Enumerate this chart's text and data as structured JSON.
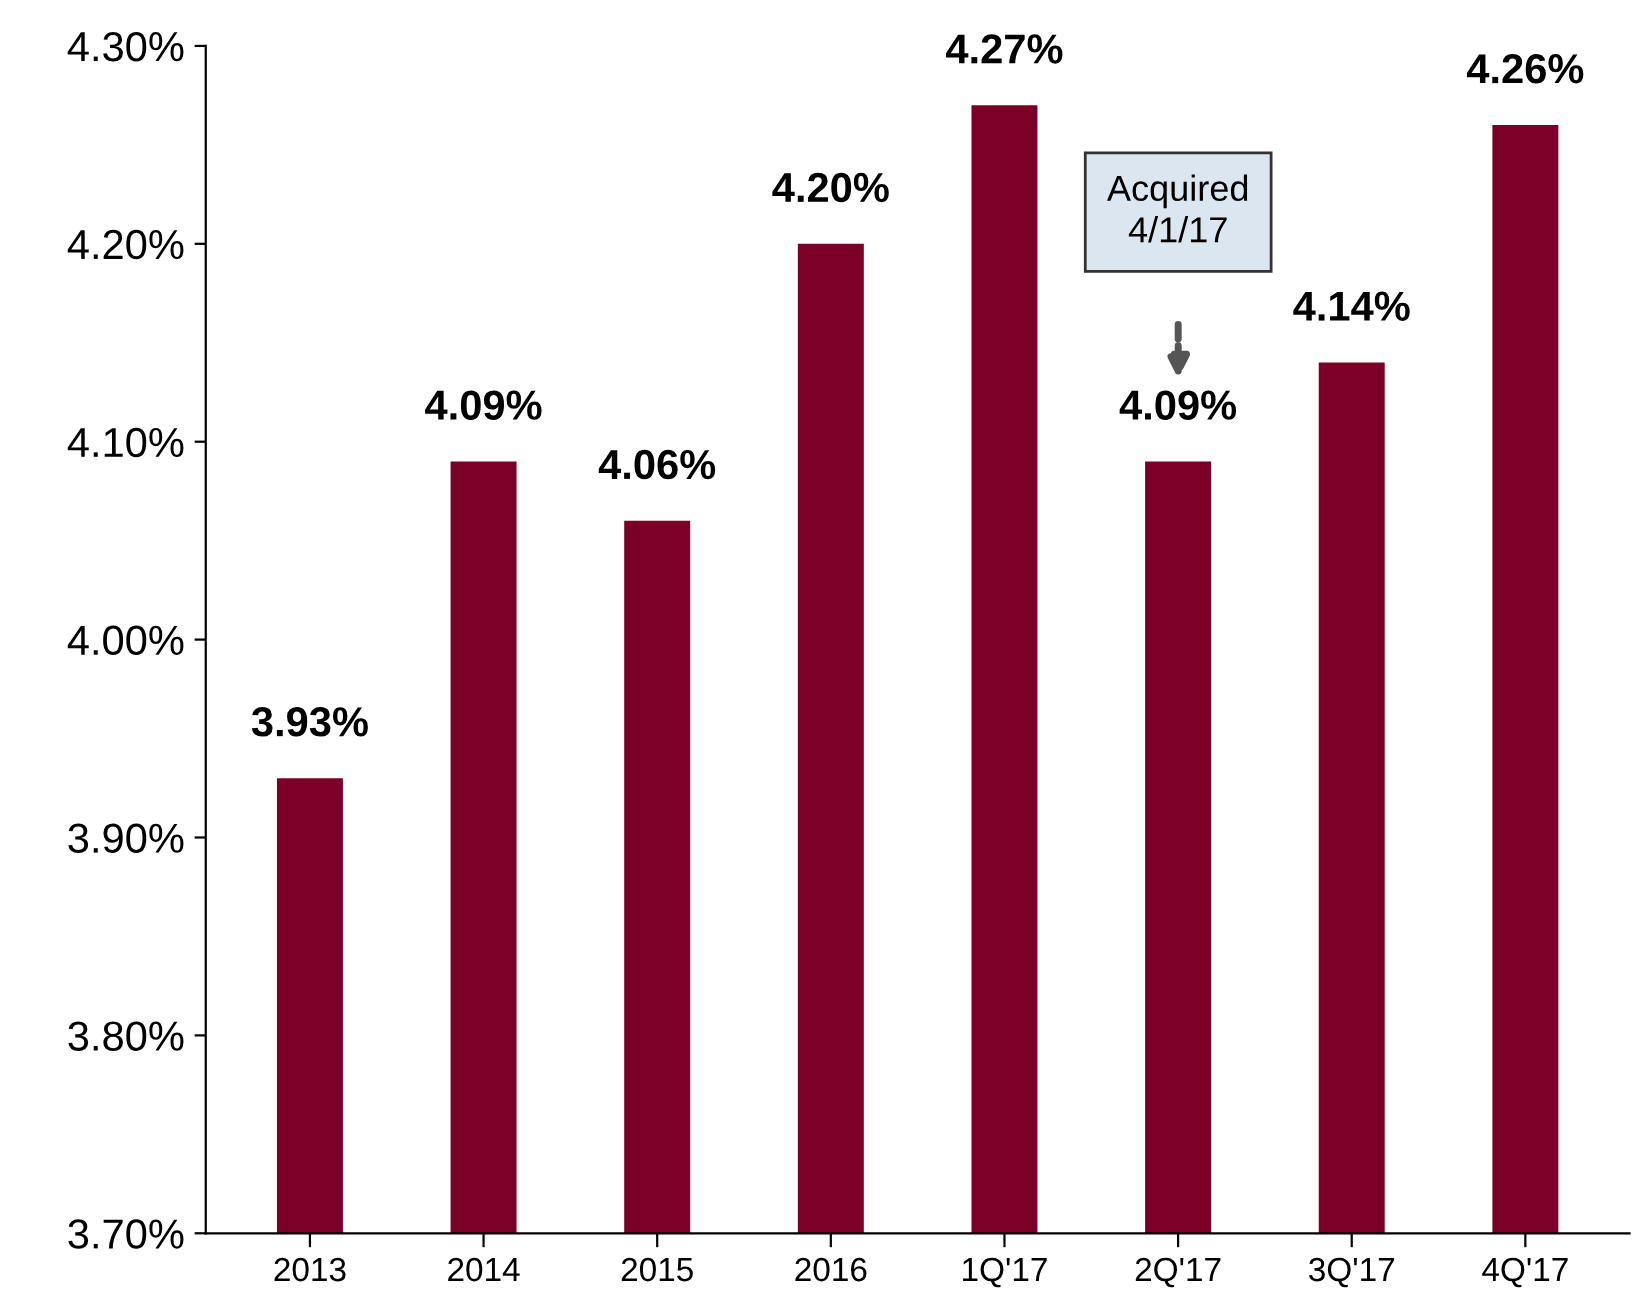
{
  "chart_data": {
    "type": "bar",
    "categories": [
      "2013",
      "2014",
      "2015",
      "2016",
      "1Q'17",
      "2Q'17",
      "3Q'17",
      "4Q'17"
    ],
    "values": [
      3.93,
      4.09,
      4.06,
      4.2,
      4.27,
      4.09,
      4.14,
      4.26
    ],
    "value_labels": [
      "3.93%",
      "4.09%",
      "4.06%",
      "4.20%",
      "4.27%",
      "4.09%",
      "4.14%",
      "4.26%"
    ],
    "color": "#7b0028",
    "ylim": [
      3.7,
      4.3
    ],
    "yticks": [
      {
        "value": 3.7,
        "label": "3.70%"
      },
      {
        "value": 3.8,
        "label": "3.80%"
      },
      {
        "value": 3.9,
        "label": "3.90%"
      },
      {
        "value": 4.0,
        "label": "4.00%"
      },
      {
        "value": 4.1,
        "label": "4.10%"
      },
      {
        "value": 4.2,
        "label": "4.20%"
      },
      {
        "value": 4.3,
        "label": "4.30%"
      }
    ],
    "grid": false,
    "legend": false,
    "annotations": [
      "Acquired\n4/1/17"
    ]
  }
}
